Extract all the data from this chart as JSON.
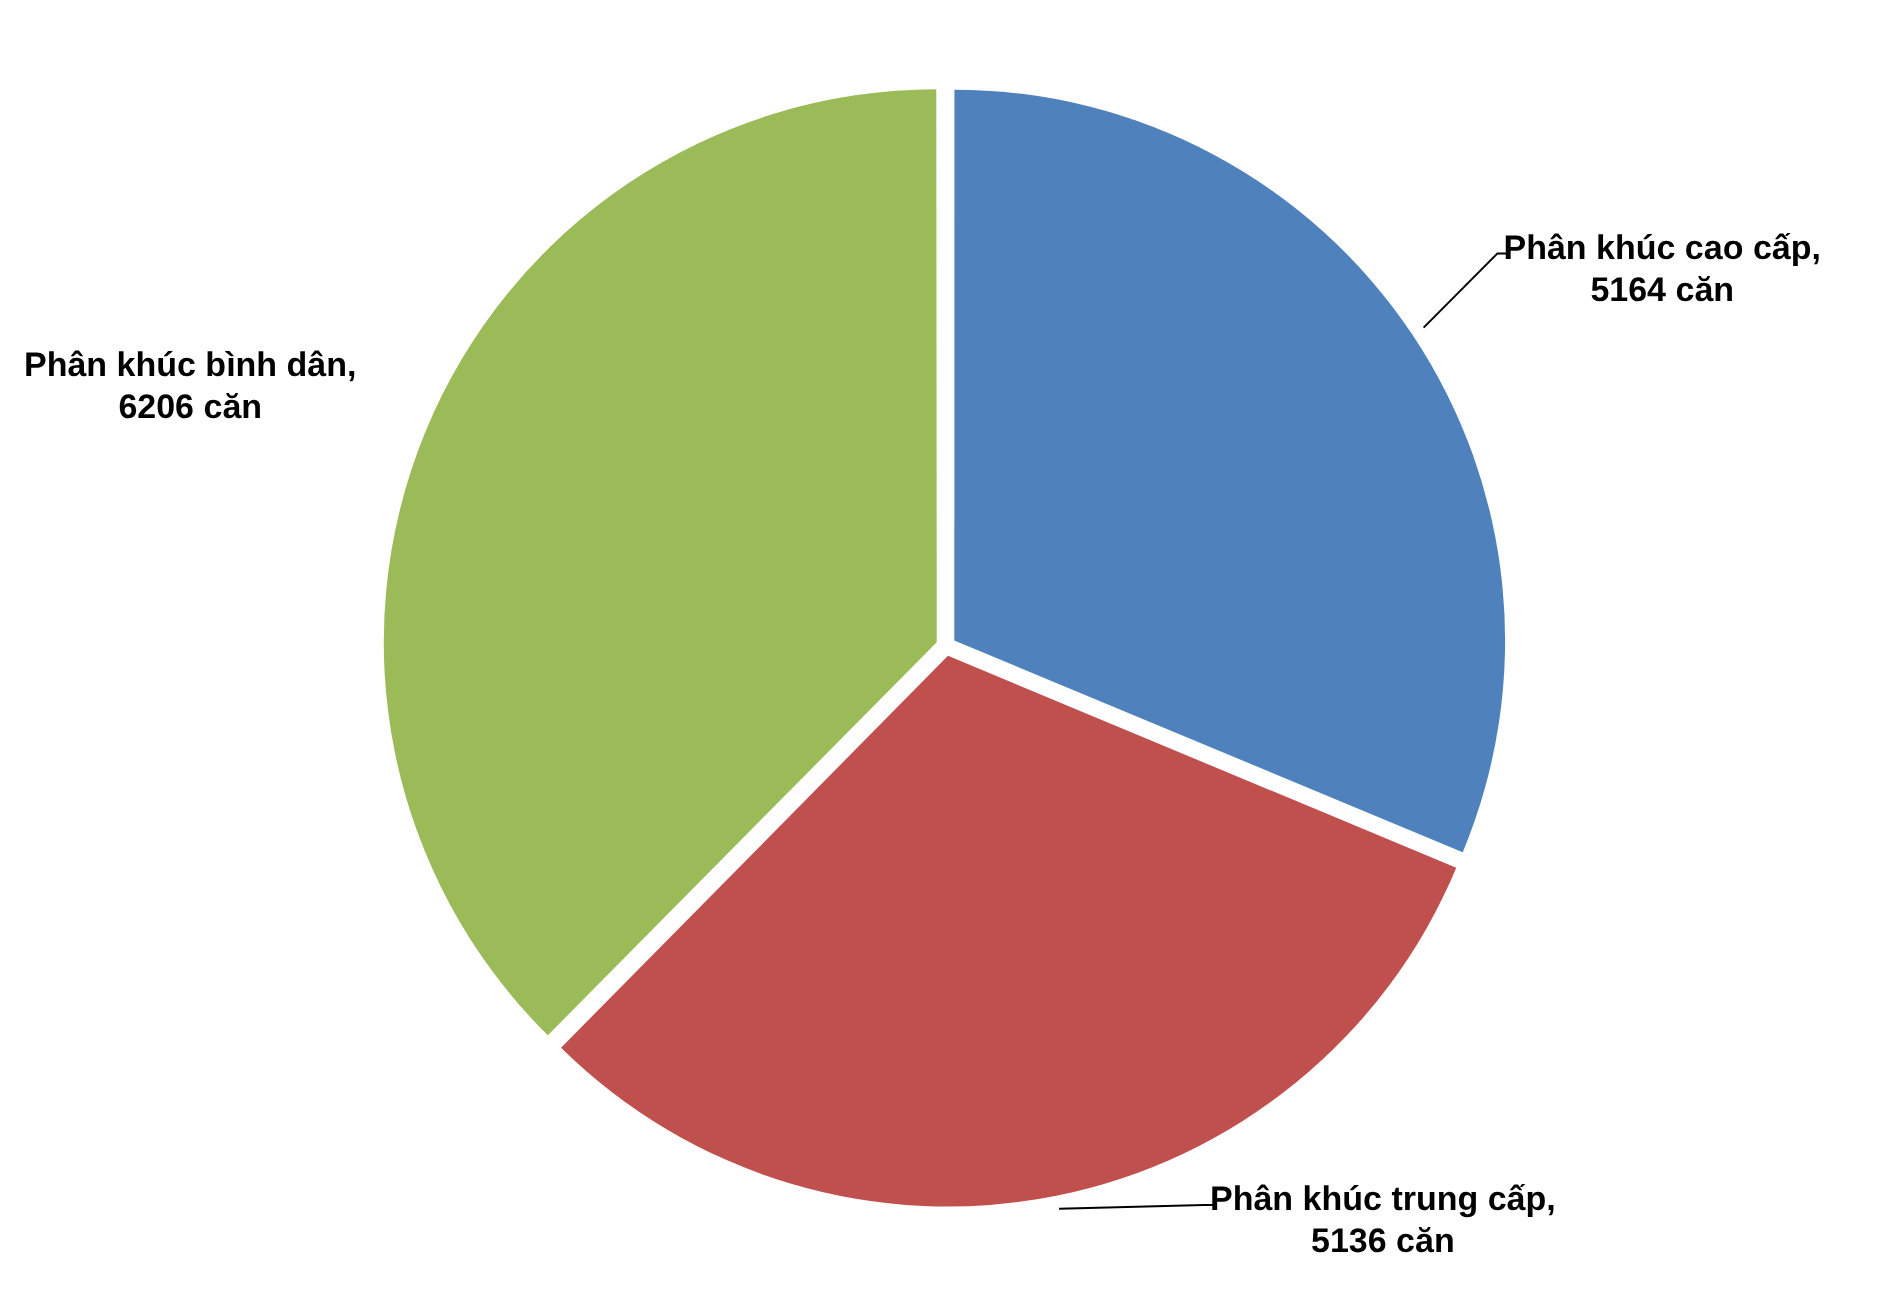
{
  "chart_data": {
    "type": "pie",
    "categories": [
      "Phân khúc cao cấp",
      "Phân khúc trung cấp",
      "Phân khúc bình dân"
    ],
    "values": [
      5164,
      5136,
      6206
    ],
    "value_labels": [
      ", 5164 căn",
      ", 5136 căn",
      ", 6206 căn"
    ],
    "colors": [
      "#4f81bd",
      "#c0504d",
      "#9bbb59"
    ],
    "legend": false
  }
}
